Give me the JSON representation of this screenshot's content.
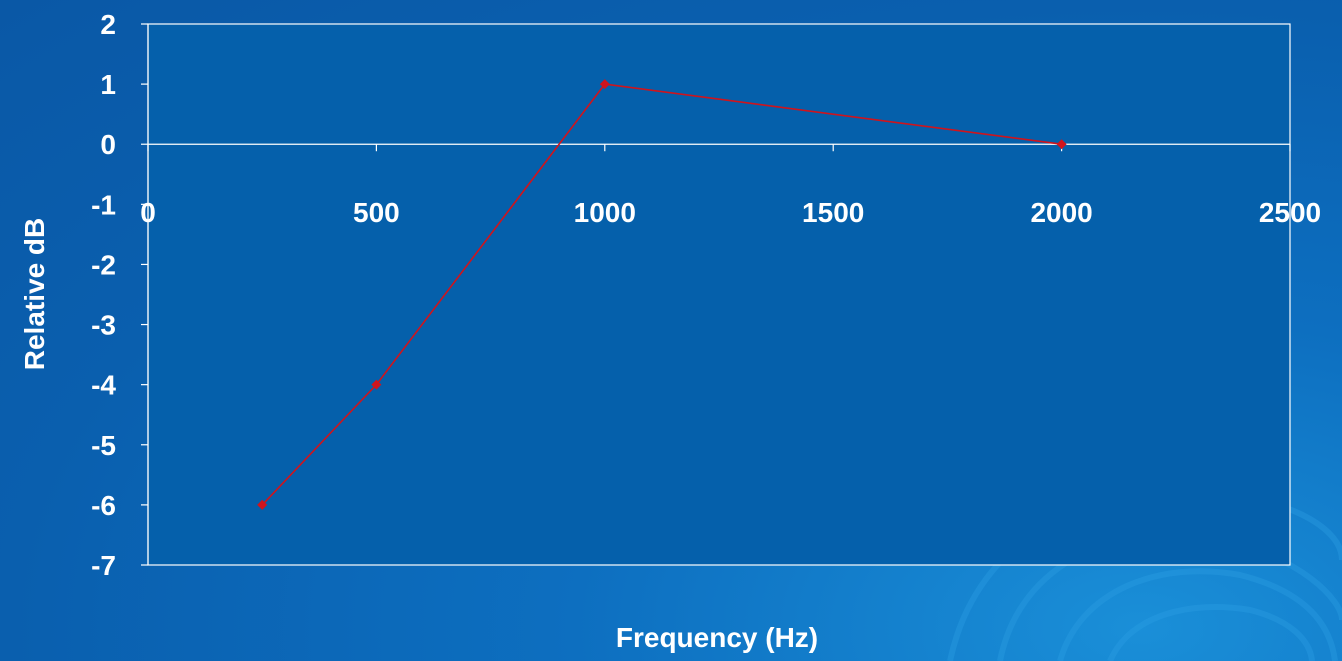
{
  "colors": {
    "background": "#0a5fae",
    "plot_area": "#0560ab",
    "series": "#d0141c",
    "axis": "#ffffff",
    "text": "#ffffff"
  },
  "chart_data": {
    "type": "scatter",
    "title": "",
    "xlabel": "Frequency (Hz)",
    "ylabel": "Relative dB",
    "xlim": [
      0,
      2500
    ],
    "ylim": [
      -7,
      2
    ],
    "x_ticks": [
      "0",
      "500",
      "1000",
      "1500",
      "2000",
      "2500"
    ],
    "y_ticks": [
      "2",
      "1",
      "0",
      "-1",
      "-2",
      "-3",
      "-4",
      "-5",
      "-6",
      "-7"
    ],
    "grid": false,
    "legend": "none",
    "series": [
      {
        "x": [
          250,
          500,
          1000,
          2000
        ],
        "y": [
          -6,
          -4,
          1,
          0
        ],
        "marker": "diamond",
        "line": "straight"
      }
    ]
  }
}
